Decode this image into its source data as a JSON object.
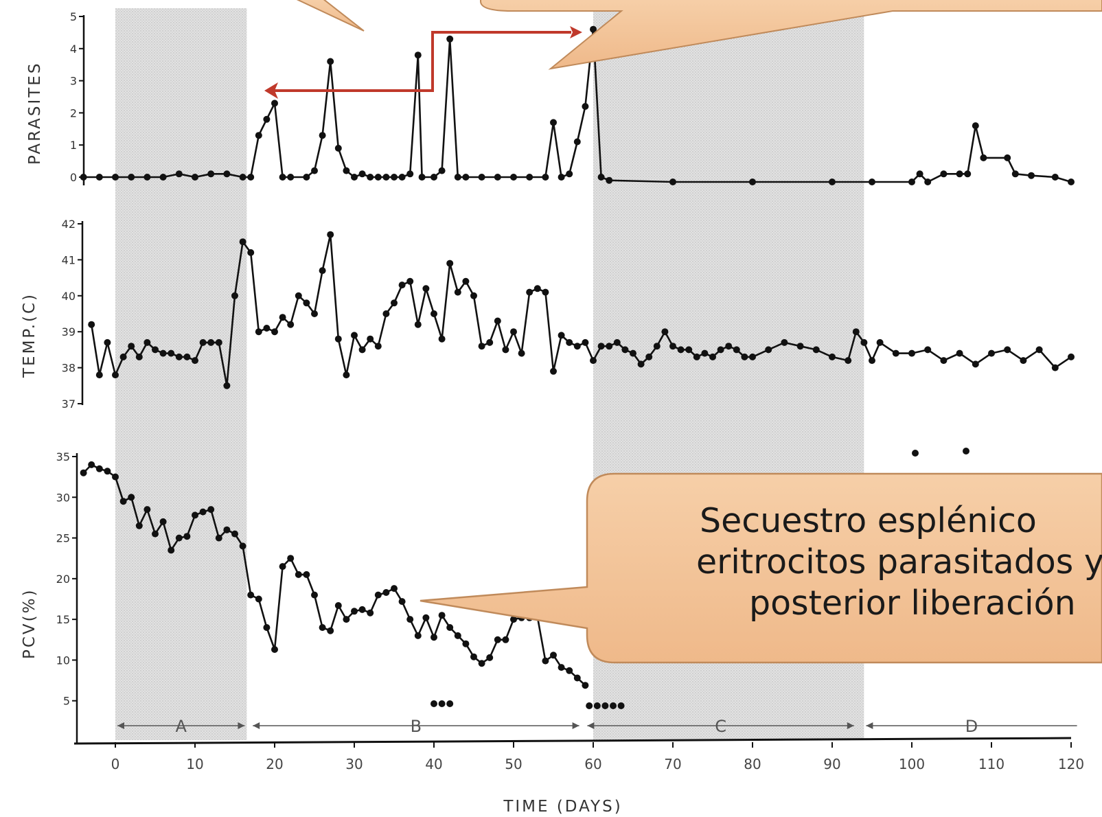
{
  "chart_data": [
    {
      "type": "line",
      "ylabel": "PARASITES",
      "ylim": [
        0,
        5
      ],
      "yticks": [
        "0",
        "1",
        "2",
        "3",
        "4",
        "5"
      ],
      "x": [
        -4,
        -2,
        0,
        2,
        4,
        6,
        8,
        10,
        12,
        14,
        16,
        17,
        18,
        19,
        20,
        21,
        22,
        24,
        25,
        26,
        27,
        28,
        29,
        30,
        31,
        32,
        33,
        34,
        35,
        36,
        37,
        38,
        38.5,
        40,
        41,
        42,
        43,
        44,
        46,
        48,
        50,
        52,
        54,
        55,
        56,
        57,
        58,
        59,
        60,
        61,
        62,
        70,
        80,
        90,
        95,
        100,
        101,
        102,
        104,
        106,
        107,
        108,
        109,
        112,
        113,
        115,
        118,
        120
      ],
      "series": [
        {
          "values": [
            0,
            0,
            0,
            0,
            0,
            0,
            0.1,
            0,
            0.1,
            0.1,
            0,
            0,
            1.3,
            1.8,
            2.3,
            0,
            0,
            0,
            0.2,
            1.3,
            3.6,
            0.9,
            0.2,
            0,
            0.1,
            0,
            0,
            0,
            0,
            0,
            0.1,
            3.8,
            0,
            0,
            0.2,
            4.3,
            0,
            0,
            0,
            0,
            0,
            0,
            0,
            1.7,
            0,
            0.1,
            1.1,
            2.2,
            4.6,
            0,
            -0.1,
            -0.15,
            -0.15,
            -0.15,
            -0.15,
            -0.15,
            0.1,
            -0.15,
            0.1,
            0.1,
            0.1,
            1.6,
            0.6,
            0.6,
            0.1,
            0.05,
            0,
            -0.15
          ]
        }
      ]
    },
    {
      "type": "line",
      "ylabel": "TEMP.(C)",
      "ylim": [
        37,
        42
      ],
      "yticks": [
        "37",
        "38",
        "39",
        "40",
        "41",
        "42"
      ],
      "x": [
        -3,
        -2,
        -1,
        0,
        1,
        2,
        3,
        4,
        5,
        6,
        7,
        8,
        9,
        10,
        11,
        12,
        13,
        14,
        15,
        16,
        17,
        18,
        19,
        20,
        21,
        22,
        23,
        24,
        25,
        26,
        27,
        28,
        29,
        30,
        31,
        32,
        33,
        34,
        35,
        36,
        37,
        38,
        39,
        40,
        41,
        42,
        43,
        44,
        45,
        46,
        47,
        48,
        49,
        50,
        51,
        52,
        53,
        54,
        55,
        56,
        57,
        58,
        59,
        60,
        61,
        62,
        63,
        64,
        65,
        66,
        67,
        68,
        69,
        70,
        71,
        72,
        73,
        74,
        75,
        76,
        77,
        78,
        79,
        80,
        82,
        84,
        86,
        88,
        90,
        92,
        93,
        94,
        95,
        96,
        98,
        100,
        102,
        104,
        106,
        108,
        110,
        112,
        114,
        116,
        118,
        120
      ],
      "series": [
        {
          "values": [
            39.2,
            37.8,
            38.7,
            37.8,
            38.3,
            38.6,
            38.3,
            38.7,
            38.5,
            38.4,
            38.4,
            38.3,
            38.3,
            38.2,
            38.7,
            38.7,
            38.7,
            37.5,
            40.0,
            41.5,
            41.2,
            39.0,
            39.1,
            39.0,
            39.4,
            39.2,
            40.0,
            39.8,
            39.5,
            40.7,
            41.7,
            38.8,
            37.8,
            38.9,
            38.5,
            38.8,
            38.6,
            39.5,
            39.8,
            40.3,
            40.4,
            39.2,
            40.2,
            39.5,
            38.8,
            40.9,
            40.1,
            40.4,
            40.0,
            38.6,
            38.7,
            39.3,
            38.5,
            39.0,
            38.4,
            40.1,
            40.2,
            40.1,
            37.9,
            38.9,
            38.7,
            38.6,
            38.7,
            38.2,
            38.6,
            38.6,
            38.7,
            38.5,
            38.4,
            38.1,
            38.3,
            38.6,
            39.0,
            38.6,
            38.5,
            38.5,
            38.3,
            38.4,
            38.3,
            38.5,
            38.6,
            38.5,
            38.3,
            38.3,
            38.5,
            38.7,
            38.6,
            38.5,
            38.3,
            38.2,
            39.0,
            38.7,
            38.2,
            38.7,
            38.4,
            38.4,
            38.5,
            38.2,
            38.4,
            38.1,
            38.4,
            38.5,
            38.2,
            38.5,
            38.0,
            38.3
          ]
        }
      ]
    },
    {
      "type": "line",
      "ylabel": "PCV(%)",
      "xlabel": "TIME (DAYS)",
      "ylim": [
        0,
        35
      ],
      "yticks": [
        "5",
        "10",
        "15",
        "20",
        "25",
        "30",
        "35"
      ],
      "xticks": [
        "0",
        "10",
        "20",
        "30",
        "40",
        "50",
        "60",
        "70",
        "80",
        "90",
        "100",
        "110",
        "120"
      ],
      "x": [
        -4,
        -3,
        -2,
        -1,
        0,
        1,
        2,
        3,
        4,
        5,
        6,
        7,
        8,
        9,
        10,
        11,
        12,
        13,
        14,
        15,
        16,
        17,
        18,
        19,
        20,
        21,
        22,
        23,
        24,
        25,
        26,
        27,
        28,
        29,
        30,
        31,
        32,
        33,
        34,
        35,
        36,
        37,
        38,
        39,
        40,
        41,
        42,
        43,
        44,
        45,
        46,
        47,
        48,
        49,
        50,
        51,
        52,
        53,
        54,
        55,
        56,
        57,
        58,
        59
      ],
      "series": [
        {
          "values": [
            33,
            34,
            33.5,
            33.2,
            32.5,
            29.5,
            30,
            26.5,
            28.5,
            25.5,
            27,
            23.5,
            25,
            25.2,
            27.8,
            28.2,
            28.5,
            25,
            26,
            25.5,
            24,
            18,
            17.5,
            14,
            11.3,
            21.5,
            22.5,
            20.5,
            20.5,
            18,
            14,
            13.6,
            16.7,
            15,
            16,
            16.2,
            15.8,
            18,
            18.3,
            18.8,
            17.2,
            15,
            13,
            15.2,
            12.8,
            15.5,
            14,
            13,
            12,
            10.4,
            9.6,
            10.3,
            12.5,
            12.5,
            15,
            15.2,
            15.2,
            15.3,
            9.9,
            10.6,
            9.1,
            8.7,
            7.8,
            6.9
          ]
        }
      ],
      "segments": [
        "A",
        "B",
        "C",
        "D"
      ]
    }
  ],
  "callout": {
    "lines": [
      "Secuestro esplénico",
      "eritrocitos parasitados y",
      "posterior liberación"
    ]
  },
  "colors": {
    "callout_fill": "#f4c49a",
    "callout_stroke": "#c08a5a",
    "arrow": "#c0392b",
    "shade": "#dcdcdc",
    "ink": "#111111"
  }
}
